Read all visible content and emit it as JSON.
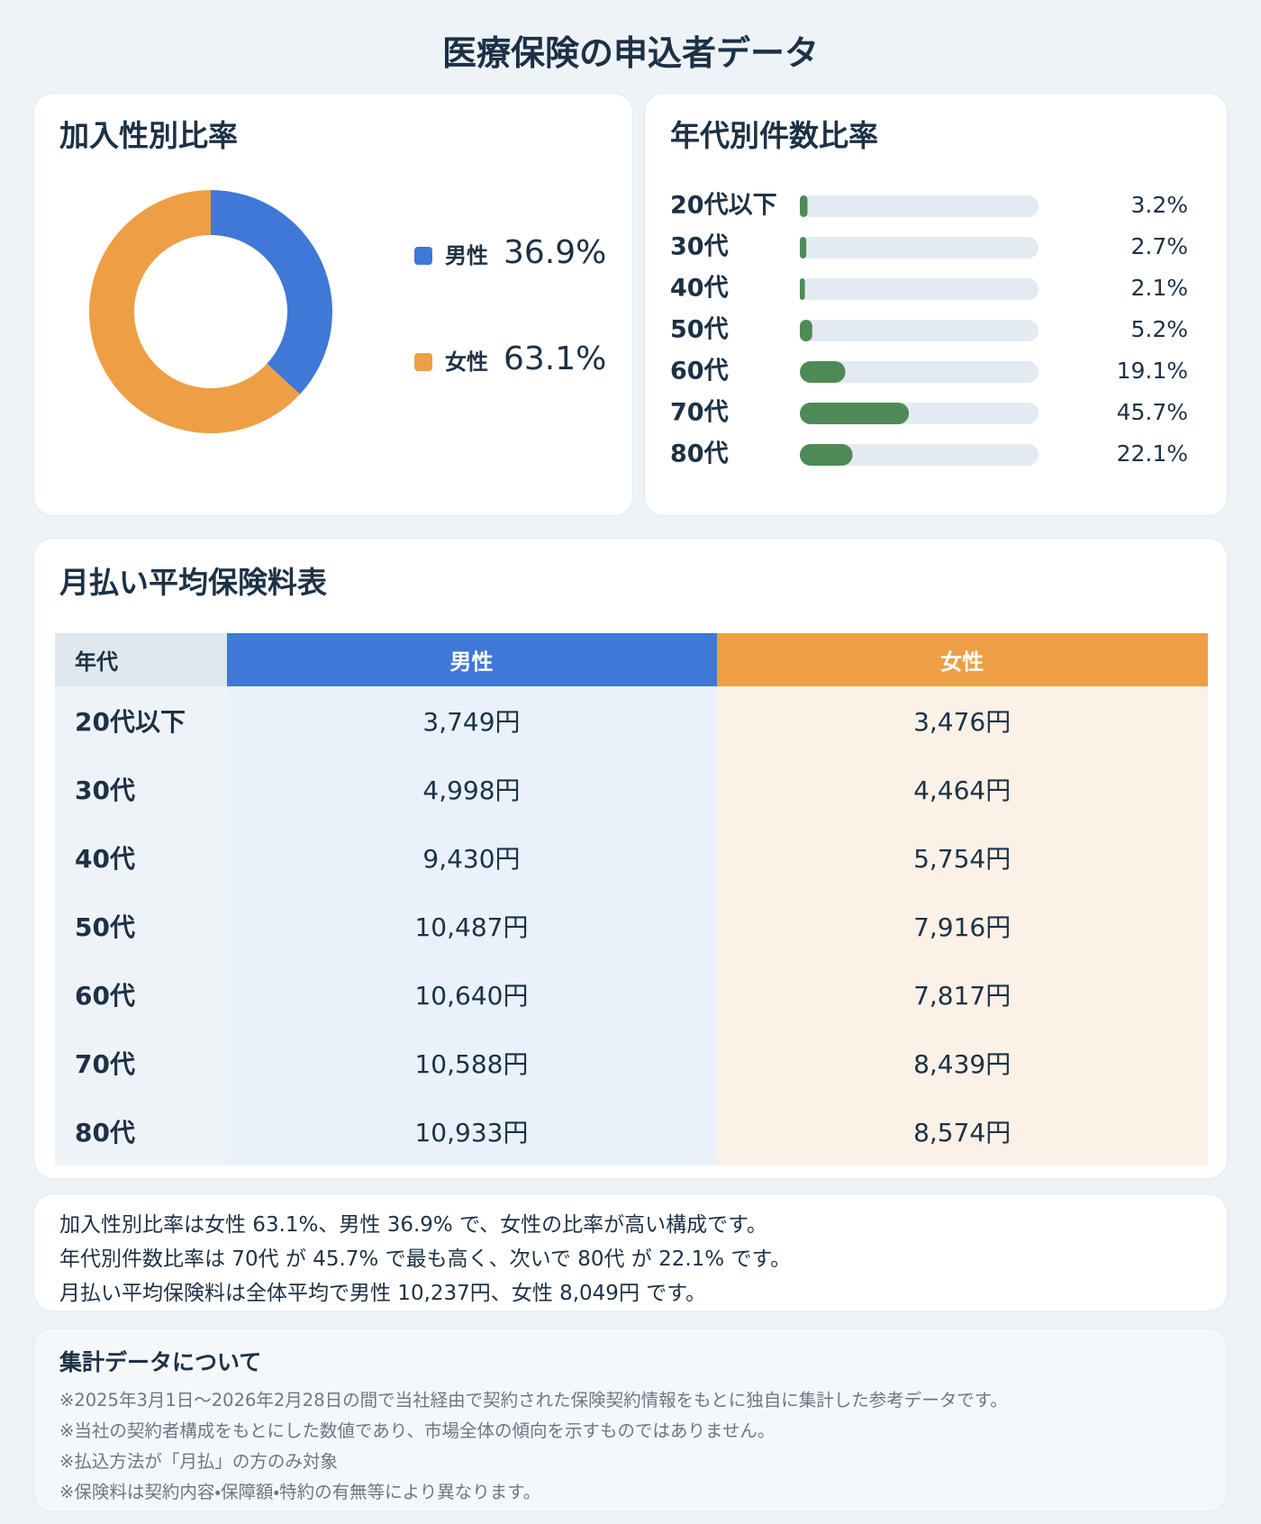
{
  "title": "医療保険の申込者データ",
  "chart_data": [
    {
      "type": "donut",
      "title": "加入性別比率",
      "categories": [
        "男性",
        "女性"
      ],
      "values": [
        36.9,
        63.1
      ],
      "value_labels": [
        "36.9%",
        "63.1%"
      ],
      "colors": [
        "#3f78d6",
        "#ee9f45"
      ]
    },
    {
      "type": "hbar",
      "title": "年代別件数比率",
      "categories": [
        "20代以下",
        "30代",
        "40代",
        "50代",
        "60代",
        "70代",
        "80代"
      ],
      "values": [
        3.2,
        2.7,
        2.1,
        5.2,
        19.1,
        45.7,
        22.1
      ],
      "value_labels": [
        "3.2%",
        "2.7%",
        "2.1%",
        "5.2%",
        "19.1%",
        "45.7%",
        "22.1%"
      ],
      "xlim": [
        0,
        100
      ],
      "color": "#4e8a57"
    }
  ],
  "table": {
    "title": "月払い平均保険料表",
    "header": [
      "年代",
      "男性",
      "女性"
    ],
    "rows": [
      [
        "20代以下",
        "3,749円",
        "3,476円"
      ],
      [
        "30代",
        "4,998円",
        "4,464円"
      ],
      [
        "40代",
        "9,430円",
        "5,754円"
      ],
      [
        "50代",
        "10,487円",
        "7,916円"
      ],
      [
        "60代",
        "10,640円",
        "7,817円"
      ],
      [
        "70代",
        "10,588円",
        "8,439円"
      ],
      [
        "80代",
        "10,933円",
        "8,574円"
      ]
    ]
  },
  "summary": [
    "加入性別比率は女性 63.1%、男性 36.9% で、女性の比率が高い構成です。",
    "年代別件数比率は 70代 が 45.7% で最も高く、次いで 80代 が 22.1% です。",
    "月払い平均保険料は全体平均で男性 10,237円、女性 8,049円 です。"
  ],
  "notes": {
    "title": "集計データについて",
    "lines": [
      "※2025年3月1日～2026年2月28日の間で当社経由で契約された保険契約情報をもとに独自に集計した参考データです。",
      "※当社の契約者構成をもとにした数値であり、市場全体の傾向を示すものではありません。",
      "※払込方法が「月払」の方のみ対象",
      "※保険料は契約内容・保障額・特約の有無等により異なります。"
    ]
  }
}
